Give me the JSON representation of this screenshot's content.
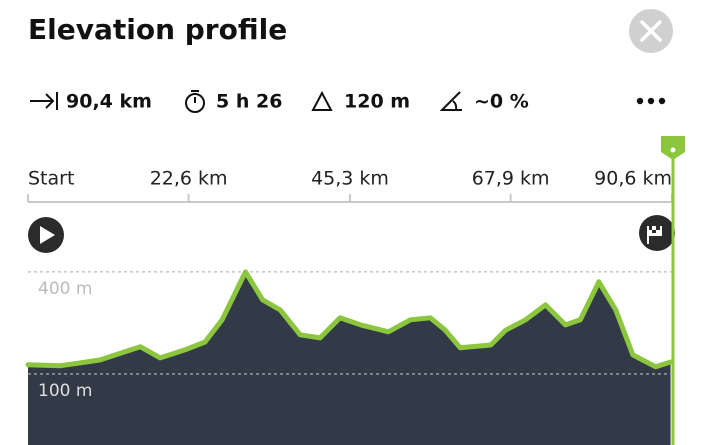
{
  "header": {
    "title": "Elevation profile"
  },
  "stats": [
    "90,4 km",
    "5 h 26",
    "120 m",
    "~0 %"
  ],
  "chart_data": {
    "type": "area",
    "x": [
      0,
      4.5,
      10.1,
      15.8,
      18.6,
      22.1,
      24.9,
      27.3,
      30.6,
      33.0,
      35.5,
      38.3,
      41.1,
      43.9,
      46.8,
      50.7,
      53.8,
      56.6,
      58.7,
      60.8,
      65.1,
      67.2,
      70.0,
      72.8,
      75.6,
      77.7,
      80.3,
      82.7,
      85.1,
      88.3,
      90.4
    ],
    "values": [
      127,
      124,
      141,
      180,
      147,
      171,
      194,
      259,
      400,
      318,
      288,
      215,
      206,
      265,
      244,
      224,
      259,
      265,
      229,
      177,
      185,
      229,
      259,
      303,
      244,
      259,
      371,
      288,
      156,
      121,
      135
    ],
    "color": "#8cc63f",
    "xlim": [
      0,
      90.6
    ],
    "xticks": [
      {
        "value": 0,
        "label": "Start"
      },
      {
        "value": 22.6,
        "label": "22,6 km"
      },
      {
        "value": 45.3,
        "label": "45,3 km"
      },
      {
        "value": 67.9,
        "label": "67,9 km"
      },
      {
        "value": 90.6,
        "label": "90,6 km"
      }
    ],
    "ylim": [
      -109,
      582
    ],
    "yticks": [
      {
        "value": 400,
        "label": "400 m"
      },
      {
        "value": 100,
        "label": "100 m"
      }
    ],
    "grid": true
  }
}
